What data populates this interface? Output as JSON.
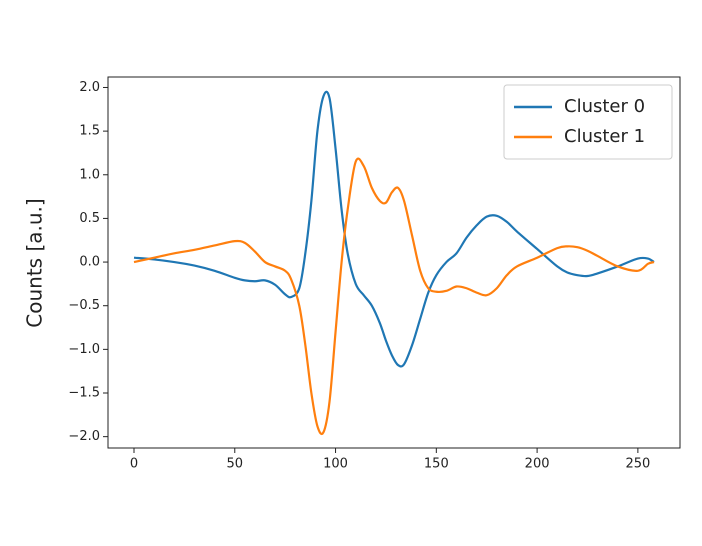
{
  "chart_data": {
    "type": "line",
    "ylabel": "Counts [a.u.]",
    "x": [
      0,
      10,
      20,
      30,
      40,
      50,
      55,
      60,
      65,
      70,
      75,
      78,
      82,
      85,
      88,
      91,
      94,
      97,
      100,
      103,
      106,
      110,
      114,
      118,
      122,
      125,
      128,
      131,
      134,
      138,
      142,
      146,
      150,
      155,
      160,
      165,
      170,
      175,
      180,
      185,
      190,
      200,
      210,
      215,
      220,
      225,
      230,
      240,
      250,
      255,
      258
    ],
    "series": [
      {
        "name": "Cluster 0",
        "color": "#1f77b4",
        "values": [
          0.05,
          0.03,
          0.0,
          -0.04,
          -0.1,
          -0.18,
          -0.21,
          -0.22,
          -0.21,
          -0.26,
          -0.37,
          -0.4,
          -0.3,
          0.1,
          0.7,
          1.5,
          1.9,
          1.88,
          1.3,
          0.6,
          0.1,
          -0.25,
          -0.38,
          -0.5,
          -0.7,
          -0.9,
          -1.07,
          -1.18,
          -1.17,
          -0.95,
          -0.65,
          -0.35,
          -0.15,
          0.0,
          0.1,
          0.28,
          0.42,
          0.52,
          0.53,
          0.46,
          0.35,
          0.15,
          -0.05,
          -0.12,
          -0.15,
          -0.16,
          -0.13,
          -0.05,
          0.04,
          0.04,
          0.0
        ]
      },
      {
        "name": "Cluster 1",
        "color": "#ff7f0e",
        "values": [
          0.0,
          0.05,
          0.1,
          0.14,
          0.19,
          0.24,
          0.22,
          0.12,
          0.0,
          -0.05,
          -0.1,
          -0.2,
          -0.5,
          -0.95,
          -1.5,
          -1.88,
          -1.95,
          -1.6,
          -0.8,
          0.0,
          0.6,
          1.15,
          1.1,
          0.85,
          0.7,
          0.68,
          0.8,
          0.85,
          0.7,
          0.3,
          -0.1,
          -0.3,
          -0.34,
          -0.33,
          -0.28,
          -0.3,
          -0.35,
          -0.38,
          -0.3,
          -0.15,
          -0.05,
          0.05,
          0.16,
          0.18,
          0.17,
          0.13,
          0.07,
          -0.05,
          -0.1,
          -0.02,
          0.0
        ]
      }
    ],
    "xlim": [
      -12.9,
      270.9
    ],
    "ylim": [
      -2.13,
      2.12
    ],
    "xticks": [
      0,
      50,
      100,
      150,
      200,
      250
    ],
    "yticks": [
      {
        "value": -2,
        "label": "−2.0"
      },
      {
        "value": -1.5,
        "label": "−1.5"
      },
      {
        "value": -1,
        "label": "−1.0"
      },
      {
        "value": -0.5,
        "label": "−0.5"
      },
      {
        "value": 0,
        "label": "0.0"
      },
      {
        "value": 0.5,
        "label": "0.5"
      },
      {
        "value": 1,
        "label": "1.0"
      },
      {
        "value": 1.5,
        "label": "1.5"
      },
      {
        "value": 2,
        "label": "2.0"
      }
    ],
    "legend": "upper right",
    "grid": false
  }
}
